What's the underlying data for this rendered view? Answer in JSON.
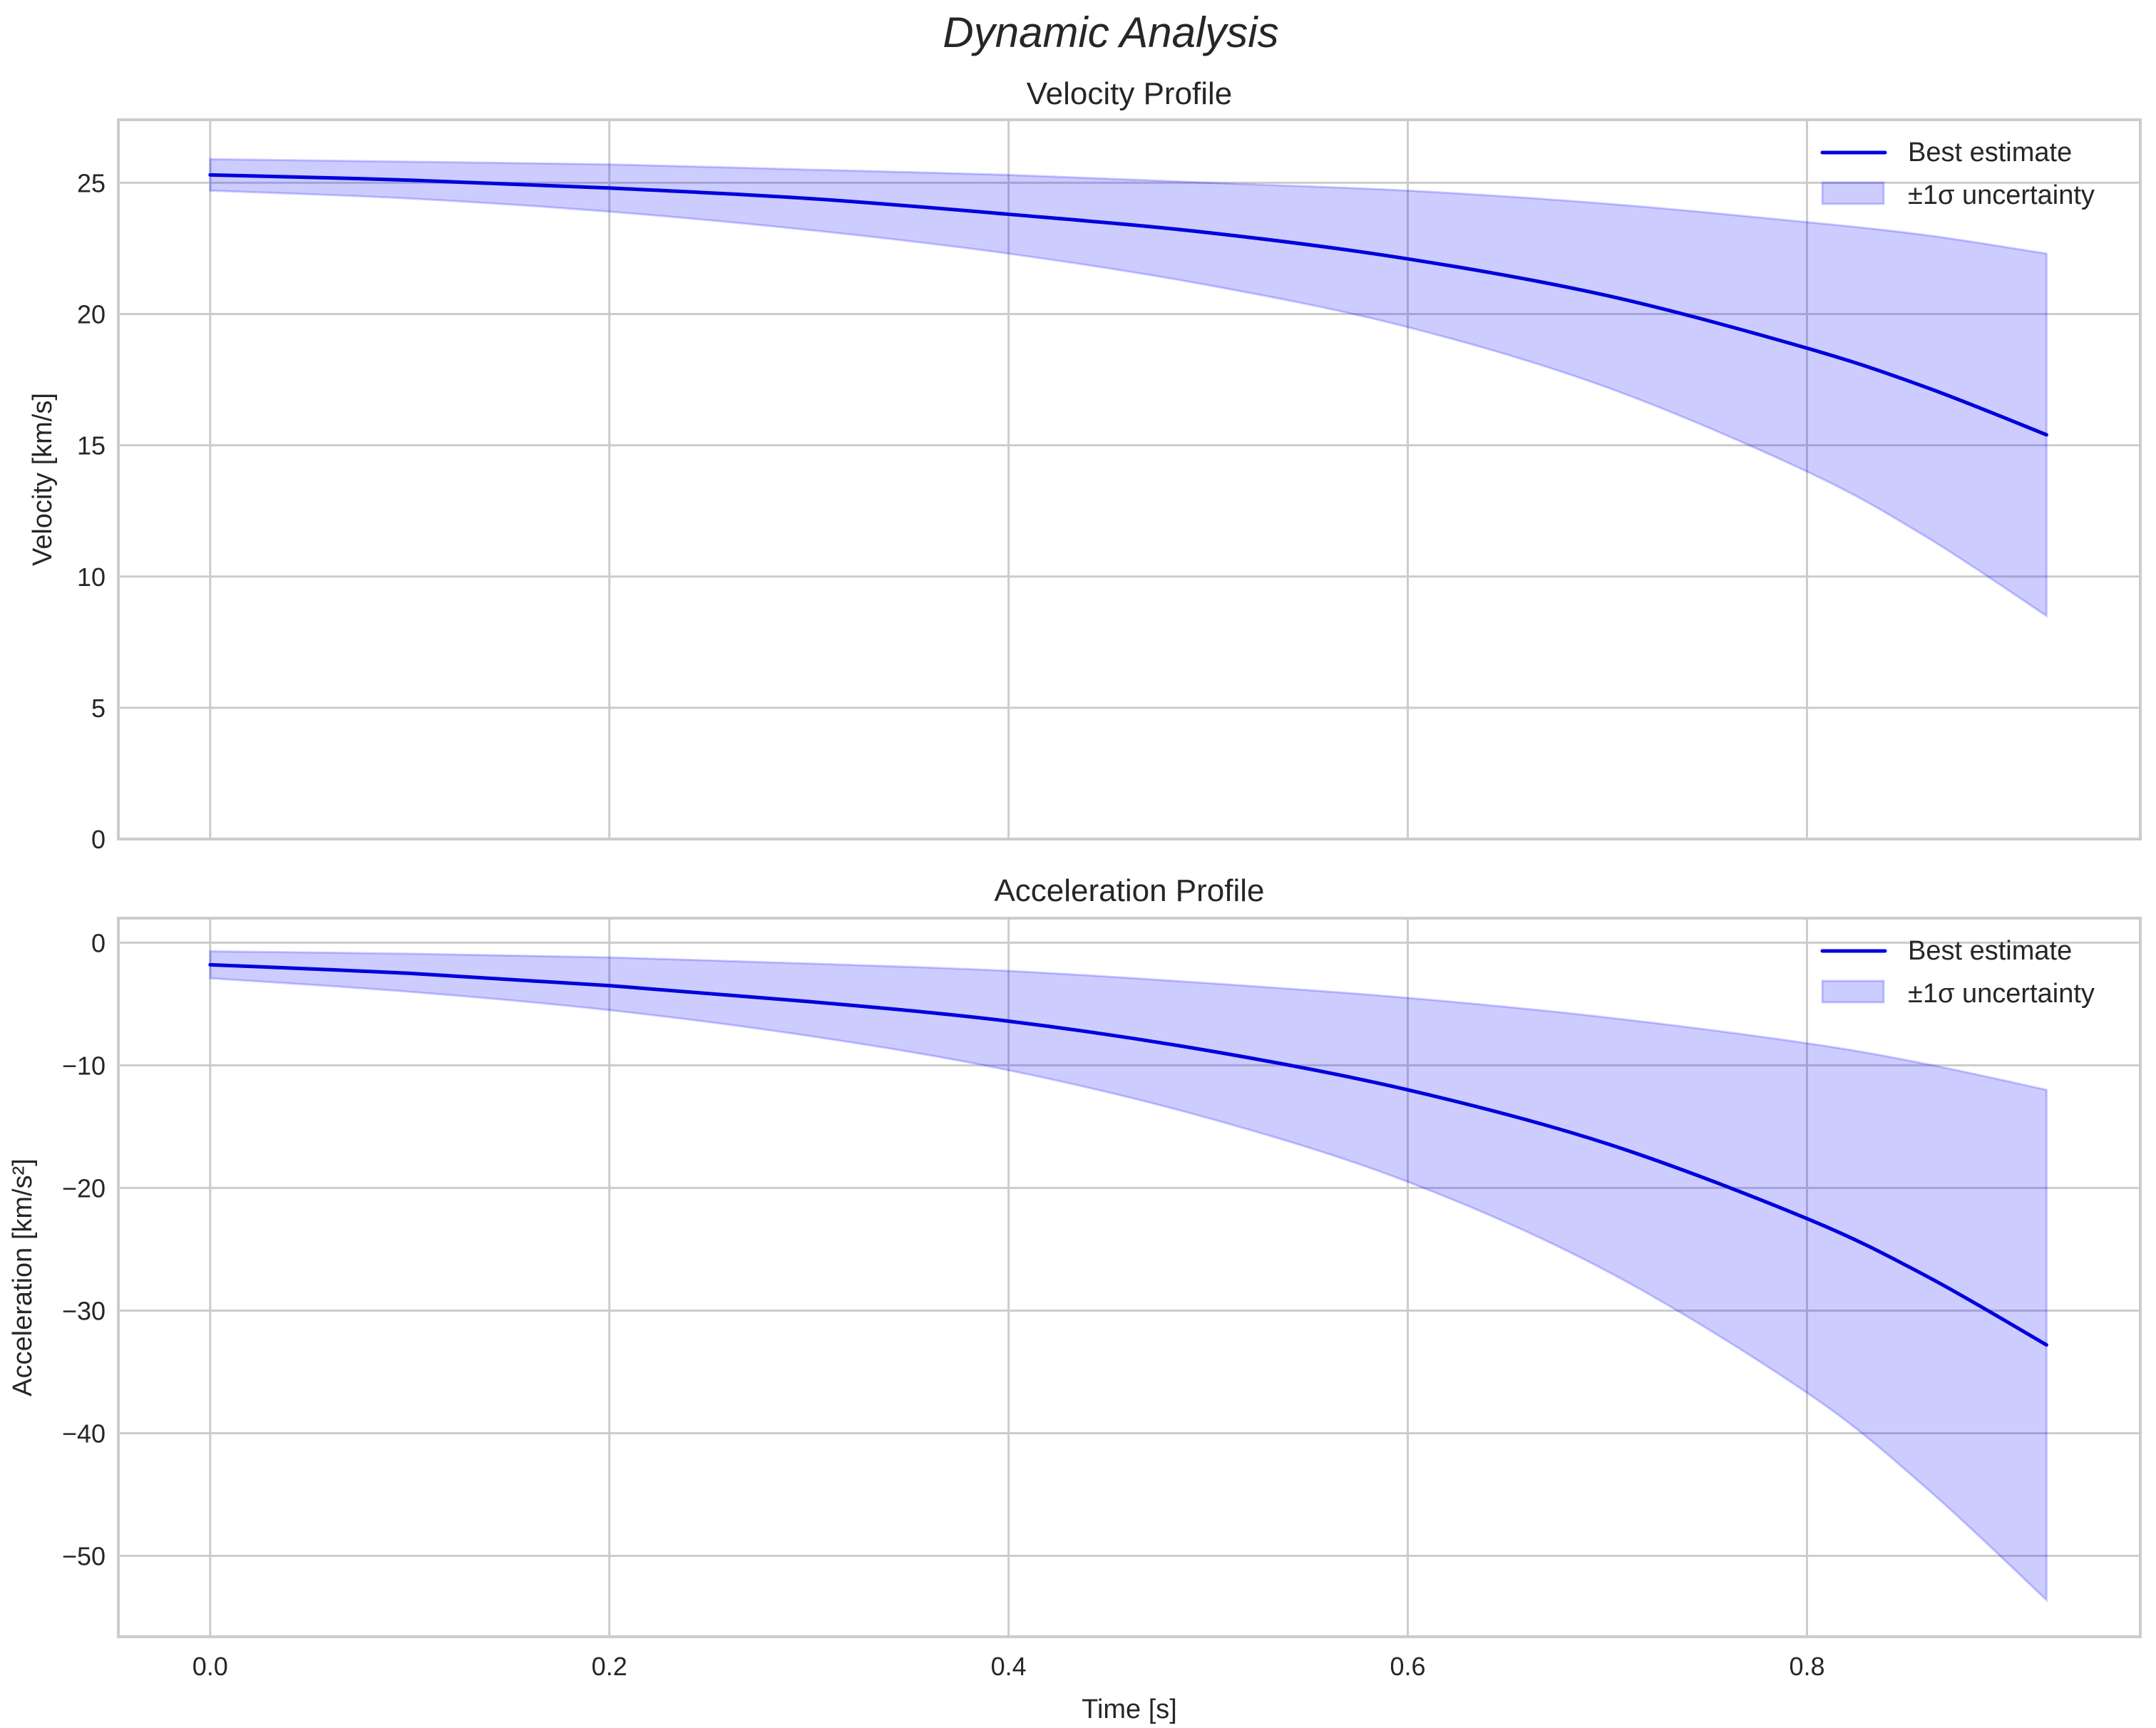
{
  "figure": {
    "suptitle": "Dynamic Analysis",
    "background": "#ffffff",
    "grid_color": "#cccccc",
    "frame_color": "#cccccc",
    "line_color": "#0000dd",
    "band_color": "#0000ff",
    "band_alpha": 0.2
  },
  "chart_data": [
    {
      "type": "line",
      "title": "Velocity Profile",
      "xlabel": "",
      "ylabel": "Velocity [km/s]",
      "xlim": [
        -0.046,
        0.967
      ],
      "ylim": [
        0,
        27.4
      ],
      "xticks": [
        0.0,
        0.2,
        0.4,
        0.6,
        0.8
      ],
      "xtick_labels_visible": false,
      "yticks": [
        0,
        5,
        10,
        15,
        20,
        25
      ],
      "ytick_labels": [
        "0",
        "5",
        "10",
        "15",
        "20",
        "25"
      ],
      "grid": true,
      "legend": {
        "position": "upper right",
        "entries": [
          "Best estimate",
          "±1σ uncertainty"
        ]
      },
      "x": [
        0.0,
        0.1,
        0.2,
        0.3,
        0.4,
        0.5,
        0.6,
        0.7,
        0.8,
        0.86,
        0.92
      ],
      "series": [
        {
          "name": "Best estimate",
          "kind": "line",
          "values": [
            25.3,
            25.1,
            24.8,
            24.4,
            23.8,
            23.1,
            22.1,
            20.7,
            18.7,
            17.2,
            15.4
          ]
        },
        {
          "name": "±1σ uncertainty",
          "kind": "band",
          "lower": [
            24.7,
            24.4,
            23.9,
            23.2,
            22.3,
            21.1,
            19.5,
            17.2,
            14.0,
            11.5,
            8.5
          ],
          "upper": [
            25.9,
            25.8,
            25.7,
            25.5,
            25.3,
            25.0,
            24.7,
            24.2,
            23.5,
            23.0,
            22.3
          ]
        }
      ]
    },
    {
      "type": "line",
      "title": "Acceleration Profile",
      "xlabel": "Time [s]",
      "ylabel": "Acceleration [km/s²]",
      "xlim": [
        -0.046,
        0.967
      ],
      "ylim": [
        -56.6,
        2.0
      ],
      "xticks": [
        0.0,
        0.2,
        0.4,
        0.6,
        0.8
      ],
      "xtick_labels": [
        "0.0",
        "0.2",
        "0.4",
        "0.6",
        "0.8"
      ],
      "yticks": [
        0,
        -10,
        -20,
        -30,
        -40,
        -50
      ],
      "ytick_labels": [
        "0",
        "−10",
        "−20",
        "−30",
        "−40",
        "−50"
      ],
      "grid": true,
      "legend": {
        "position": "upper right",
        "entries": [
          "Best estimate",
          "±1σ uncertainty"
        ]
      },
      "x": [
        0.0,
        0.1,
        0.2,
        0.3,
        0.4,
        0.5,
        0.6,
        0.7,
        0.8,
        0.86,
        0.92
      ],
      "series": [
        {
          "name": "Best estimate",
          "kind": "line",
          "values": [
            -1.8,
            -2.5,
            -3.5,
            -4.8,
            -6.4,
            -8.8,
            -12.0,
            -16.4,
            -22.5,
            -27.2,
            -32.8
          ]
        },
        {
          "name": "±1σ uncertainty",
          "kind": "band",
          "lower": [
            -2.9,
            -4.0,
            -5.5,
            -7.6,
            -10.4,
            -14.3,
            -19.5,
            -26.8,
            -36.7,
            -44.5,
            -53.6
          ],
          "upper": [
            -0.7,
            -0.9,
            -1.2,
            -1.7,
            -2.3,
            -3.3,
            -4.5,
            -6.1,
            -8.2,
            -9.9,
            -12.0
          ]
        }
      ]
    }
  ]
}
